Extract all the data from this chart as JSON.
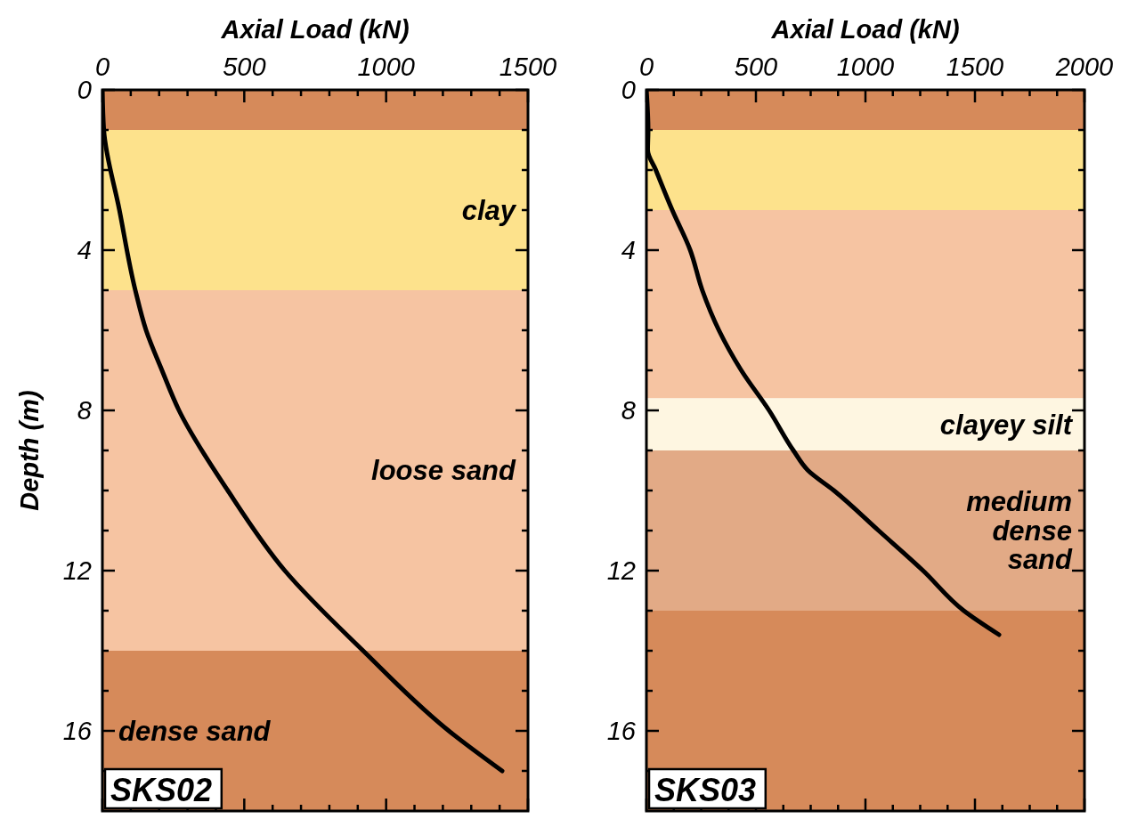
{
  "chart_data": [
    {
      "type": "line",
      "xlabel": "Axial Load (kN)",
      "ylabel": "Depth (m)",
      "xlim": [
        0,
        1500
      ],
      "ylim": [
        18,
        0
      ],
      "xticks": [
        0,
        {
          "value": 100,
          "label": null
        },
        {
          "value": 200,
          "label": null
        },
        {
          "value": 300,
          "label": null
        },
        {
          "value": 400,
          "label": null
        },
        500,
        {
          "value": 600,
          "label": null
        },
        {
          "value": 700,
          "label": null
        },
        {
          "value": 800,
          "label": null
        },
        {
          "value": 900,
          "label": null
        },
        1000,
        {
          "value": 1100,
          "label": null
        },
        {
          "value": 1200,
          "label": null
        },
        {
          "value": 1300,
          "label": null
        },
        {
          "value": 1400,
          "label": null
        },
        1500
      ],
      "yticks": [
        0,
        {
          "value": 1,
          "label": null
        },
        {
          "value": 2,
          "label": null
        },
        {
          "value": 3,
          "label": null
        },
        4,
        {
          "value": 5,
          "label": null
        },
        {
          "value": 6,
          "label": null
        },
        {
          "value": 7,
          "label": null
        },
        8,
        {
          "value": 9,
          "label": null
        },
        {
          "value": 10,
          "label": null
        },
        {
          "value": 11,
          "label": null
        },
        12,
        {
          "value": 13,
          "label": null
        },
        {
          "value": 14,
          "label": null
        },
        {
          "value": 15,
          "label": null
        },
        16,
        {
          "value": 17,
          "label": null
        }
      ],
      "series": [
        {
          "color": "#000000",
          "x": [
            0,
            5,
            60,
            116,
            154,
            210,
            270,
            442,
            643,
            919,
            1221,
            1409
          ],
          "values": [
            0,
            1,
            3,
            5,
            6,
            7,
            8,
            10,
            12,
            14,
            16,
            17
          ]
        }
      ],
      "bands": [
        {
          "axis": "y",
          "from": 0,
          "to": 1,
          "color": "#d68a5a"
        },
        {
          "axis": "y",
          "from": 1,
          "to": 5,
          "color": "#fde28c",
          "label": "clay"
        },
        {
          "axis": "y",
          "from": 5,
          "to": 14,
          "color": "#f6c4a2",
          "label": "loose sand"
        },
        {
          "axis": "y",
          "from": 14,
          "to": 18,
          "color": "#d68a5a",
          "label": "dense sand"
        }
      ],
      "annotations": [
        "SKS02"
      ],
      "grid": false
    },
    {
      "type": "line",
      "xlabel": "Axial Load (kN)",
      "xlim": [
        0,
        2000
      ],
      "ylim": [
        18,
        0
      ],
      "xticks": [
        0,
        {
          "value": 125,
          "label": null
        },
        {
          "value": 250,
          "label": null
        },
        {
          "value": 375,
          "label": null
        },
        500,
        {
          "value": 625,
          "label": null
        },
        {
          "value": 750,
          "label": null
        },
        {
          "value": 875,
          "label": null
        },
        1000,
        {
          "value": 1125,
          "label": null
        },
        {
          "value": 1250,
          "label": null
        },
        {
          "value": 1375,
          "label": null
        },
        1500,
        {
          "value": 1625,
          "label": null
        },
        {
          "value": 1750,
          "label": null
        },
        {
          "value": 1875,
          "label": null
        },
        2000
      ],
      "yticks": [
        0,
        {
          "value": 1,
          "label": null
        },
        {
          "value": 2,
          "label": null
        },
        {
          "value": 3,
          "label": null
        },
        4,
        {
          "value": 5,
          "label": null
        },
        {
          "value": 6,
          "label": null
        },
        {
          "value": 7,
          "label": null
        },
        8,
        {
          "value": 9,
          "label": null
        },
        {
          "value": 10,
          "label": null
        },
        {
          "value": 11,
          "label": null
        },
        12,
        {
          "value": 13,
          "label": null
        },
        {
          "value": 14,
          "label": null
        },
        {
          "value": 15,
          "label": null
        },
        16,
        {
          "value": 17,
          "label": null
        }
      ],
      "series": [
        {
          "color": "#000000",
          "x": [
            0,
            8,
            6,
            43,
            118,
            200,
            255,
            331,
            433,
            560,
            671,
            738,
            856,
            1060,
            1263,
            1449,
            1610
          ],
          "values": [
            0,
            1,
            1.5,
            2,
            3,
            4,
            5,
            6,
            7,
            8,
            9,
            9.5,
            10,
            11,
            12,
            13,
            13.6
          ]
        }
      ],
      "bands": [
        {
          "axis": "y",
          "from": 0,
          "to": 1,
          "color": "#d68a5a"
        },
        {
          "axis": "y",
          "from": 1,
          "to": 3,
          "color": "#fde28c"
        },
        {
          "axis": "y",
          "from": 3,
          "to": 7.7,
          "color": "#f6c4a2"
        },
        {
          "axis": "y",
          "from": 7.7,
          "to": 9,
          "color": "#fef6e1",
          "label": "clayey silt"
        },
        {
          "axis": "y",
          "from": 9,
          "to": 13,
          "color": "#e2aa86",
          "label": "medium dense sand"
        },
        {
          "axis": "y",
          "from": 13,
          "to": 18,
          "color": "#d68a5a"
        }
      ],
      "annotations": [
        "SKS03"
      ],
      "grid": false
    }
  ]
}
